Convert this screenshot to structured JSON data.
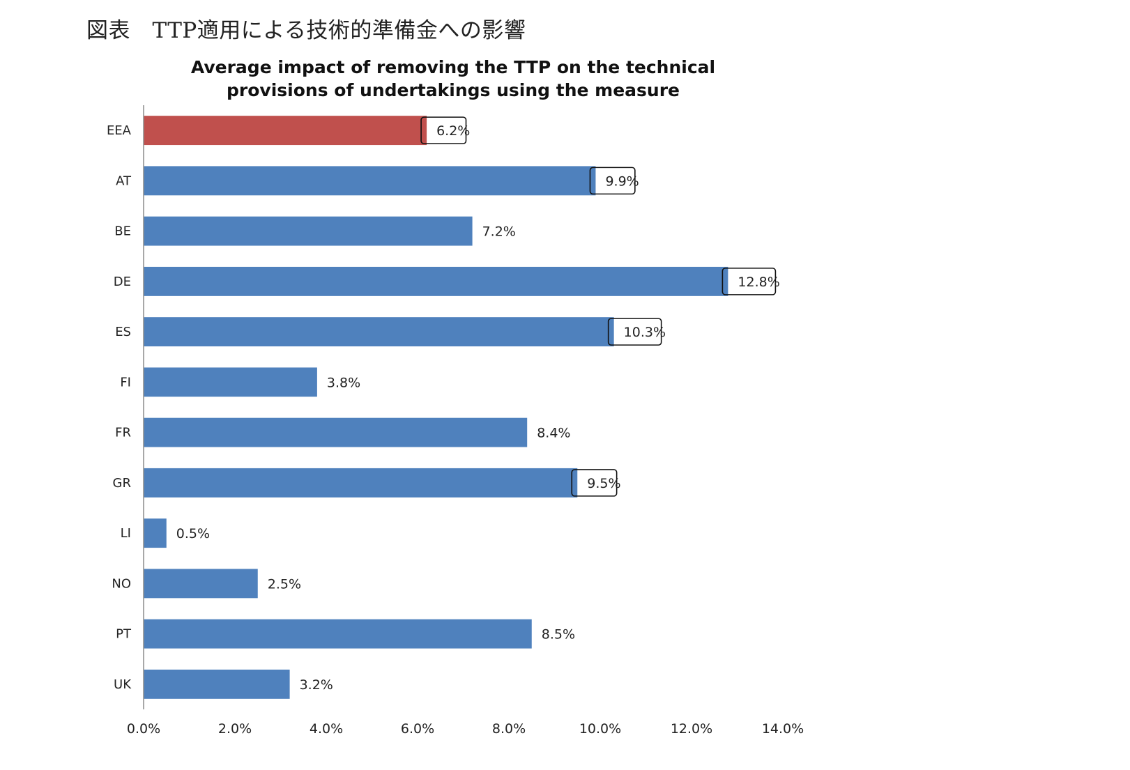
{
  "figure_title": "図表　TTP適用による技術的準備金への影響",
  "chart_data": {
    "type": "bar",
    "orientation": "horizontal",
    "title_lines": [
      "Average impact of removing the TTP on the technical",
      "provisions of undertakings using the measure"
    ],
    "categories": [
      "EEA",
      "AT",
      "BE",
      "DE",
      "ES",
      "FI",
      "FR",
      "GR",
      "LI",
      "NO",
      "PT",
      "UK"
    ],
    "values": [
      6.2,
      9.9,
      7.2,
      12.8,
      10.3,
      3.8,
      8.4,
      9.5,
      0.5,
      2.5,
      8.5,
      3.2
    ],
    "value_labels": [
      "6.2%",
      "9.9%",
      "7.2%",
      "12.8%",
      "10.3%",
      "3.8%",
      "8.4%",
      "9.5%",
      "0.5%",
      "2.5%",
      "8.5%",
      "3.2%"
    ],
    "boxed_labels": [
      "EEA",
      "AT",
      "DE",
      "ES",
      "GR"
    ],
    "highlighted_category": "EEA",
    "xlim": [
      0,
      14
    ],
    "x_ticks": [
      0,
      2,
      4,
      6,
      8,
      10,
      12,
      14
    ],
    "x_tick_labels": [
      "0.0%",
      "2.0%",
      "4.0%",
      "6.0%",
      "8.0%",
      "10.0%",
      "12.0%",
      "14.0%"
    ],
    "grid": false,
    "colors": {
      "bar": "#4f81bd",
      "highlight": "#c0504d",
      "axis": "#8c8c8c",
      "text": "#222222"
    }
  }
}
